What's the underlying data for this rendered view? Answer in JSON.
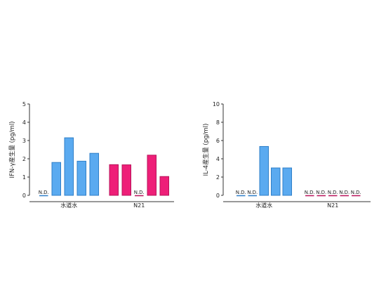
{
  "chart_data": [
    {
      "type": "bar",
      "ylabel": "IFN-γ産生量 (pg/ml)",
      "ylim": [
        0,
        5
      ],
      "yticks": [
        "0",
        "1",
        "2",
        "3",
        "4",
        "5"
      ],
      "groups": [
        {
          "name": "水道水",
          "color": "#5aaaf0",
          "stroke": "#2f7fc8",
          "values": [
            null,
            1.8,
            3.15,
            1.87,
            2.3
          ]
        },
        {
          "name": "N21",
          "color": "#ee1f78",
          "stroke": "#b8135a",
          "values": [
            1.68,
            1.67,
            null,
            2.2,
            1.03
          ]
        }
      ],
      "nd_label": "N.D."
    },
    {
      "type": "bar",
      "ylabel": "IL-4産生量 (pg/ml)",
      "ylim": [
        0,
        10
      ],
      "yticks": [
        "0",
        "2",
        "4",
        "6",
        "8",
        "10"
      ],
      "groups": [
        {
          "name": "水道水",
          "color": "#5aaaf0",
          "stroke": "#2f7fc8",
          "values": [
            null,
            null,
            5.35,
            3.0,
            3.0
          ]
        },
        {
          "name": "N21",
          "color": "#ee1f78",
          "stroke": "#b8135a",
          "values": [
            null,
            null,
            null,
            null,
            null
          ]
        }
      ],
      "nd_label": "N.D."
    }
  ]
}
